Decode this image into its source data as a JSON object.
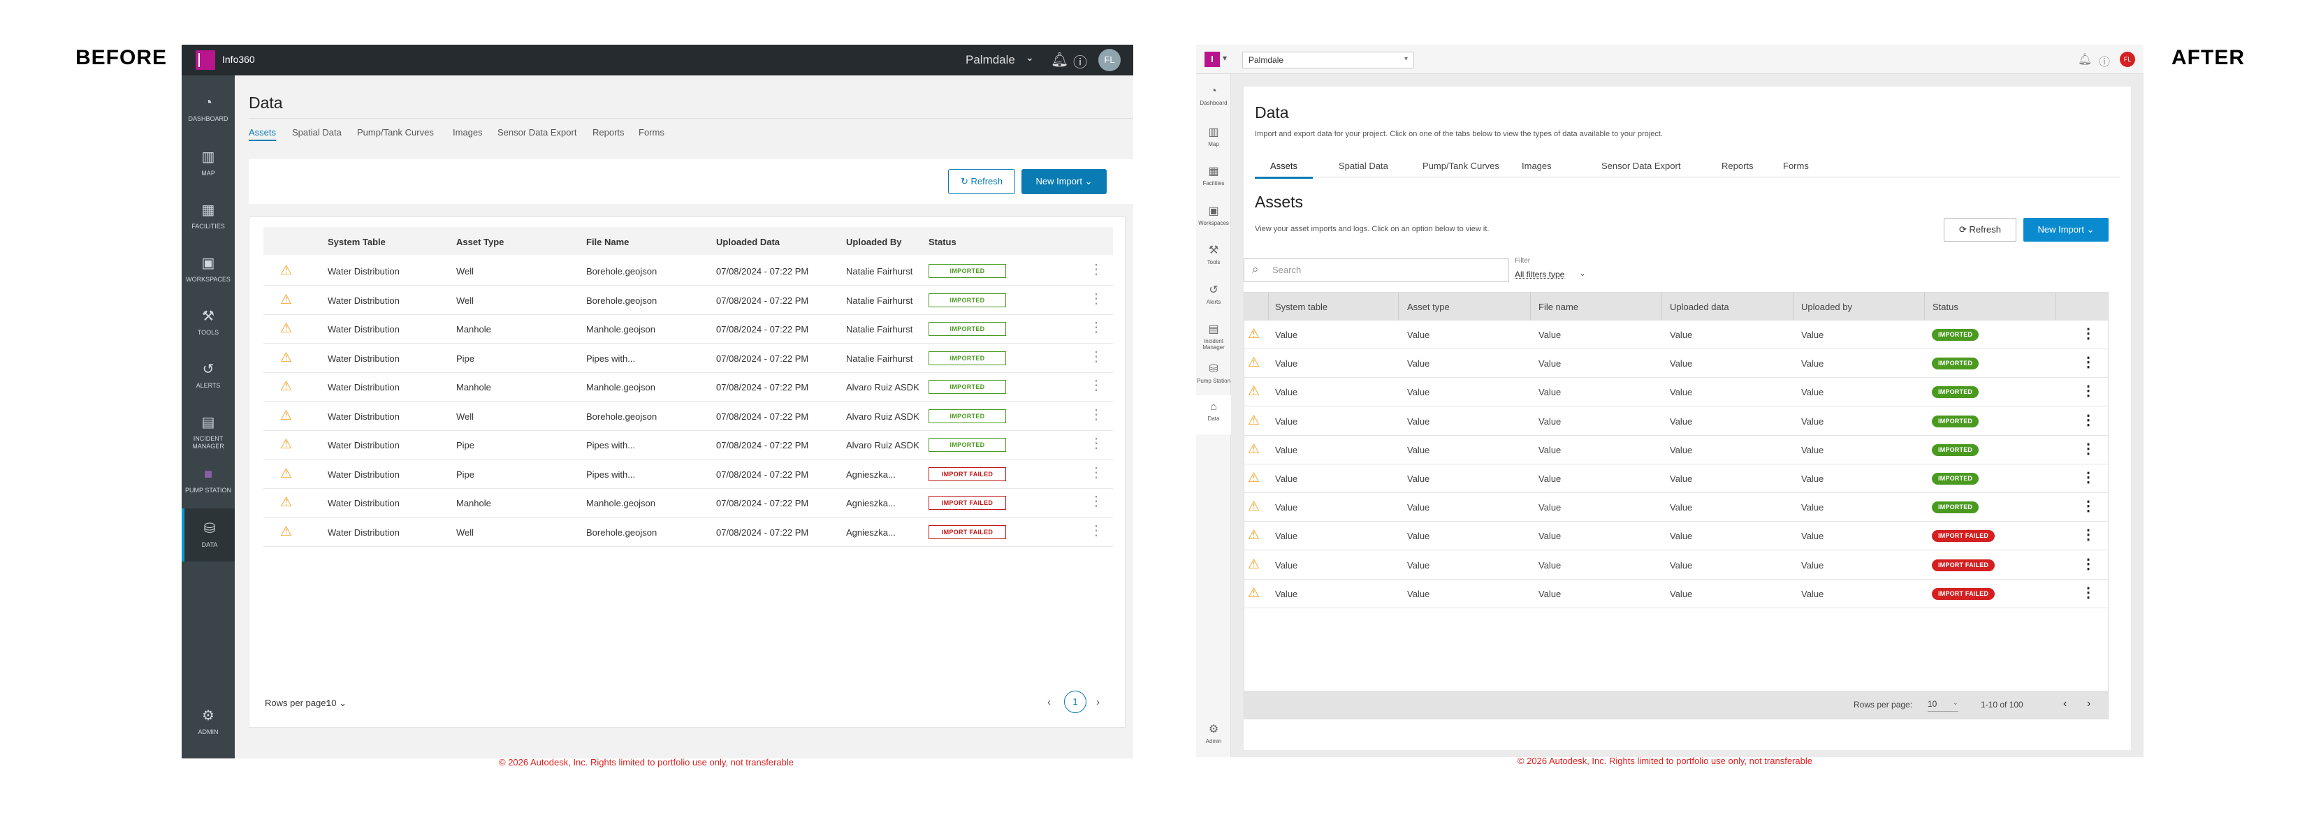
{
  "labels": {
    "before": "BEFORE",
    "after": "AFTER"
  },
  "copyright": "© 2026 Autodesk, Inc. Rights limited to portfolio use only, not transferable",
  "colors": {
    "brand": "#b8158c",
    "accent": "#0a7cb3",
    "success": "#4a9a20",
    "error": "#d42020",
    "warning": "#f0a020"
  },
  "before": {
    "app_name": "Info360",
    "org": "Palmdale",
    "avatar": "FL",
    "topbar_icons": [
      "bell-icon",
      "help-icon"
    ],
    "sidebar": [
      {
        "label": "DASHBOARD",
        "icon": "dashboard-icon",
        "glyph": "◔"
      },
      {
        "label": "MAP",
        "icon": "map-icon",
        "glyph": "▥"
      },
      {
        "label": "FACILITIES",
        "icon": "facilities-icon",
        "glyph": "▦"
      },
      {
        "label": "WORKSPACES",
        "icon": "workspaces-icon",
        "glyph": "▣"
      },
      {
        "label": "TOOLS",
        "icon": "tools-icon",
        "glyph": "⚒"
      },
      {
        "label": "ALERTS",
        "icon": "alerts-icon",
        "glyph": "↺"
      },
      {
        "label": "INCIDENT MANAGER",
        "icon": "incident-icon",
        "glyph": "▤"
      },
      {
        "label": "PUMP STATION",
        "icon": "pump-station-icon",
        "glyph": "■"
      },
      {
        "label": "DATA",
        "icon": "data-icon",
        "glyph": "⛁"
      }
    ],
    "sidebar_bottom": {
      "label": "ADMIN",
      "icon": "gear-icon",
      "glyph": "⚙"
    },
    "page_title": "Data",
    "tabs": [
      "Assets",
      "Spatial Data",
      "Pump/Tank Curves",
      "Images",
      "Sensor Data Export",
      "Reports",
      "Forms"
    ],
    "active_tab": "Assets",
    "refresh_label": "Refresh",
    "new_import_label": "New Import",
    "columns": [
      "System Table",
      "Asset Type",
      "File Name",
      "Uploaded Data",
      "Uploaded By",
      "Status"
    ],
    "rows": [
      {
        "system": "Water Distribution",
        "asset": "Well",
        "file": "Borehole.geojson",
        "date": "07/08/2024 - 07:22 PM",
        "by": "Natalie Fairhurst",
        "status": "IMPORTED",
        "ok": true
      },
      {
        "system": "Water Distribution",
        "asset": "Well",
        "file": "Borehole.geojson",
        "date": "07/08/2024 - 07:22 PM",
        "by": "Natalie Fairhurst",
        "status": "IMPORTED",
        "ok": true
      },
      {
        "system": "Water Distribution",
        "asset": "Manhole",
        "file": "Manhole.geojson",
        "date": "07/08/2024 - 07:22 PM",
        "by": "Natalie Fairhurst",
        "status": "IMPORTED",
        "ok": true
      },
      {
        "system": "Water Distribution",
        "asset": "Pipe",
        "file": "Pipes with...",
        "date": "07/08/2024 - 07:22 PM",
        "by": "Natalie Fairhurst",
        "status": "IMPORTED",
        "ok": true
      },
      {
        "system": "Water Distribution",
        "asset": "Manhole",
        "file": "Manhole.geojson",
        "date": "07/08/2024 - 07:22 PM",
        "by": "Alvaro Ruiz ASDK",
        "status": "IMPORTED",
        "ok": true
      },
      {
        "system": "Water Distribution",
        "asset": "Well",
        "file": "Borehole.geojson",
        "date": "07/08/2024 - 07:22 PM",
        "by": "Alvaro Ruiz ASDK",
        "status": "IMPORTED",
        "ok": true
      },
      {
        "system": "Water Distribution",
        "asset": "Pipe",
        "file": "Pipes with...",
        "date": "07/08/2024 - 07:22 PM",
        "by": "Alvaro Ruiz ASDK",
        "status": "IMPORTED",
        "ok": true
      },
      {
        "system": "Water Distribution",
        "asset": "Pipe",
        "file": "Pipes with...",
        "date": "07/08/2024 - 07:22 PM",
        "by": "Agnieszka...",
        "status": "IMPORT FAILED",
        "ok": false
      },
      {
        "system": "Water Distribution",
        "asset": "Manhole",
        "file": "Manhole.geojson",
        "date": "07/08/2024 - 07:22 PM",
        "by": "Agnieszka...",
        "status": "IMPORT FAILED",
        "ok": false
      },
      {
        "system": "Water Distribution",
        "asset": "Well",
        "file": "Borehole.geojson",
        "date": "07/08/2024 - 07:22 PM",
        "by": "Agnieszka...",
        "status": "IMPORT FAILED",
        "ok": false
      }
    ],
    "rows_per_page_label": "Rows per page:",
    "rows_per_page": "10",
    "current_page": "1"
  },
  "after": {
    "project": "Palmdale",
    "avatar": "FL",
    "sidebar": [
      {
        "label": "Dashboard",
        "icon": "dashboard-icon",
        "glyph": "◔"
      },
      {
        "label": "Map",
        "icon": "map-icon",
        "glyph": "▥"
      },
      {
        "label": "Facilities",
        "icon": "facilities-icon",
        "glyph": "▦"
      },
      {
        "label": "Workspaces",
        "icon": "workspaces-icon",
        "glyph": "▣"
      },
      {
        "label": "Tools",
        "icon": "tools-icon",
        "glyph": "⚒"
      },
      {
        "label": "Alerts",
        "icon": "alerts-icon",
        "glyph": "↺"
      },
      {
        "label": "Incident Manager",
        "icon": "incident-icon",
        "glyph": "▤"
      },
      {
        "label": "Pump Station",
        "icon": "pump-station-icon",
        "glyph": "⛁"
      },
      {
        "label": "Data",
        "icon": "data-icon",
        "glyph": "⌂"
      }
    ],
    "sidebar_bottom": {
      "label": "Admin",
      "icon": "gear-icon",
      "glyph": "⚙"
    },
    "page_title": "Data",
    "page_desc": "Import and export data for your project. Click on one of the tabs below to view the types of data available to your project.",
    "tabs": [
      "Assets",
      "Spatial Data",
      "Pump/Tank Curves",
      "Images",
      "Sensor Data Export",
      "Reports",
      "Forms"
    ],
    "active_tab": "Assets",
    "section_title": "Assets",
    "section_desc": "View your asset imports and logs. Click on an option below to view it.",
    "refresh_label": "Refresh",
    "new_import_label": "New Import",
    "search_placeholder": "Search",
    "filter_label": "Filter",
    "filter_value": "All filters type",
    "columns": [
      "System table",
      "Asset type",
      "File name",
      "Uploaded data",
      "Uploaded by",
      "Status"
    ],
    "rows": [
      {
        "status": "IMPORTED",
        "ok": true
      },
      {
        "status": "IMPORTED",
        "ok": true
      },
      {
        "status": "IMPORTED",
        "ok": true
      },
      {
        "status": "IMPORTED",
        "ok": true
      },
      {
        "status": "IMPORTED",
        "ok": true
      },
      {
        "status": "IMPORTED",
        "ok": true
      },
      {
        "status": "IMPORTED",
        "ok": true
      },
      {
        "status": "IMPORT FAILED",
        "ok": false
      },
      {
        "status": "IMPORT FAILED",
        "ok": false
      },
      {
        "status": "IMPORT FAILED",
        "ok": false
      }
    ],
    "cell_value": "Value",
    "rows_per_page_label": "Rows per page:",
    "rows_per_page": "10",
    "range_text": "1-10  of  100"
  }
}
